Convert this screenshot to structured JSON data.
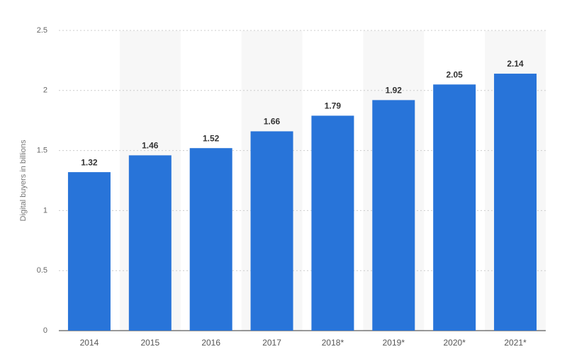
{
  "chart_data": {
    "type": "bar",
    "y_label": "Digital buyers in billions",
    "categories": [
      "2014",
      "2015",
      "2016",
      "2017",
      "2018*",
      "2019*",
      "2020*",
      "2021*"
    ],
    "values": [
      1.32,
      1.46,
      1.52,
      1.66,
      1.79,
      1.92,
      2.05,
      2.14
    ],
    "color": "#2874d9",
    "ylim": [
      0,
      2.5
    ],
    "yticks": [
      0,
      0.5,
      1,
      1.5,
      2,
      2.5
    ],
    "grid": true
  }
}
